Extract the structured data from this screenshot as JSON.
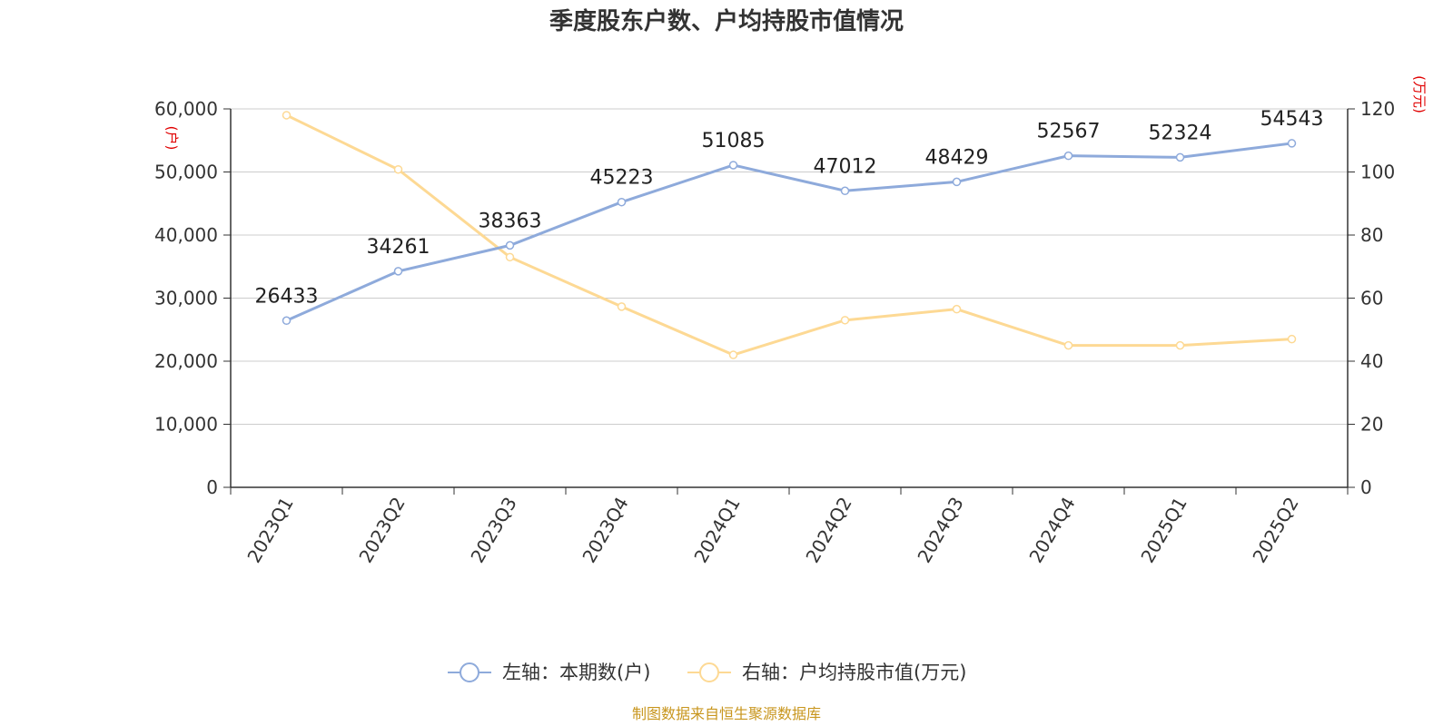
{
  "chart_data": {
    "type": "line",
    "title": "季度股东户数、户均持股市值情况",
    "categories": [
      "2023Q1",
      "2023Q2",
      "2023Q3",
      "2023Q4",
      "2024Q1",
      "2024Q2",
      "2024Q3",
      "2024Q4",
      "2025Q1",
      "2025Q2"
    ],
    "series": [
      {
        "name": "左轴：本期数(户)",
        "axis": "left",
        "color": "#8eaadb",
        "values": [
          26433,
          34261,
          38363,
          45223,
          51085,
          47012,
          48429,
          52567,
          52324,
          54543
        ],
        "data_labels": [
          "26433",
          "34261",
          "38363",
          "45223",
          "51085",
          "47012",
          "48429",
          "52567",
          "52324",
          "54543"
        ]
      },
      {
        "name": "右轴：户均持股市值(万元)",
        "axis": "right",
        "color": "#fdd994",
        "values": [
          118.0,
          100.8,
          73.0,
          57.3,
          42.0,
          53.0,
          56.5,
          45.0,
          45.0,
          47.0
        ]
      }
    ],
    "y_left": {
      "unit": "(户)",
      "ylim": [
        0,
        60000
      ],
      "ticks": [
        "0",
        "10,000",
        "20,000",
        "30,000",
        "40,000",
        "50,000",
        "60,000"
      ]
    },
    "y_right": {
      "unit": "(万元)",
      "ylim": [
        0,
        120
      ],
      "ticks": [
        "0",
        "20",
        "40",
        "60",
        "80",
        "100",
        "120"
      ]
    },
    "grid": true,
    "legend_position": "bottom-center",
    "source": "制图数据来自恒生聚源数据库"
  }
}
